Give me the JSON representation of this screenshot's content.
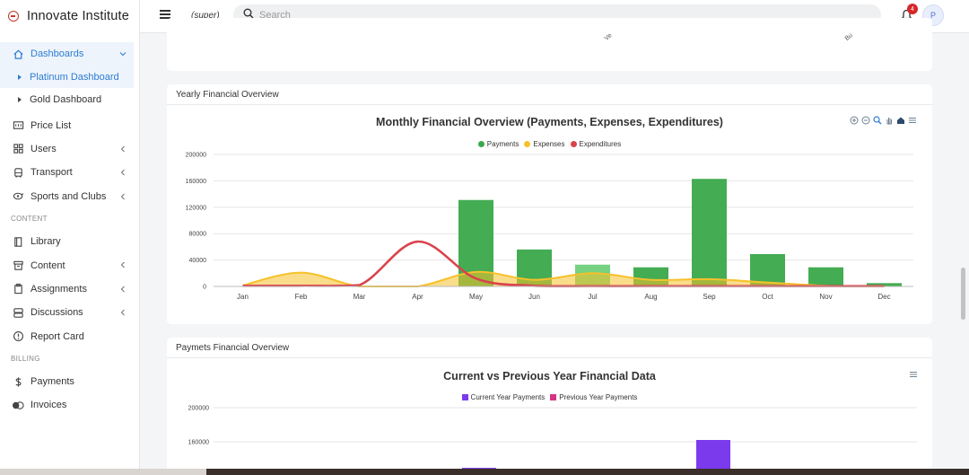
{
  "brand": {
    "name": "Innovate Institute"
  },
  "topbar": {
    "role": "(super)",
    "search_placeholder": "Search",
    "notification_count": "4",
    "avatar_initial": "P"
  },
  "sidebar": {
    "dashboards": "Dashboards",
    "platinum": "Platinum Dashboard",
    "gold": "Gold Dashboard",
    "price_list": "Price List",
    "users": "Users",
    "transport": "Transport",
    "sports": "Sports and Clubs",
    "section_content": "CONTENT",
    "library": "Library",
    "content": "Content",
    "assignments": "Assignments",
    "discussions": "Discussions",
    "report_card": "Report Card",
    "section_billing": "BILLING",
    "payments": "Payments",
    "invoices": "Invoices"
  },
  "cards": {
    "yearly_title": "Yearly Financial Overview",
    "payments_title": "Paymets Financial Overview",
    "top_partial_labels": [
      "Ve",
      "Bu"
    ]
  },
  "colors": {
    "payments": "#3aa84a",
    "expenses": "#f6c12a",
    "expenditures": "#d9434b",
    "current": "#7c3aed",
    "previous": "#d63384",
    "accent": "#2d7dd2"
  },
  "chart_data": [
    {
      "type": "bar",
      "title": "Monthly Financial Overview (Payments, Expenses, Expenditures)",
      "categories": [
        "Jan",
        "Feb",
        "Mar",
        "Apr",
        "May",
        "Jun",
        "Jul",
        "Aug",
        "Sep",
        "Oct",
        "Nov",
        "Dec"
      ],
      "yticks": [
        "0",
        "40000",
        "80000",
        "120000",
        "160000",
        "200000"
      ],
      "ylim": [
        0,
        200000
      ],
      "series": [
        {
          "name": "Payments",
          "kind": "bar",
          "values": [
            0,
            0,
            0,
            0,
            131000,
            56000,
            33000,
            29000,
            163000,
            49000,
            29000,
            5000
          ]
        },
        {
          "name": "Expenses",
          "kind": "area",
          "values": [
            1500,
            21000,
            0,
            0,
            22000,
            10000,
            20000,
            10000,
            11000,
            6000,
            1000,
            0
          ]
        },
        {
          "name": "Expenditures",
          "kind": "line",
          "values": [
            1000,
            1000,
            2000,
            68000,
            12000,
            1000,
            500,
            500,
            500,
            500,
            500,
            500
          ]
        }
      ],
      "legend": [
        "Payments",
        "Expenses",
        "Expenditures"
      ],
      "grid": true,
      "legend_position": "top"
    },
    {
      "type": "bar",
      "title": "Current vs Previous Year Financial Data",
      "yticks": [
        "160000",
        "200000"
      ],
      "legend": [
        "Current Year Payments",
        "Previous Year Payments"
      ],
      "grid": true,
      "legend_position": "top"
    }
  ]
}
